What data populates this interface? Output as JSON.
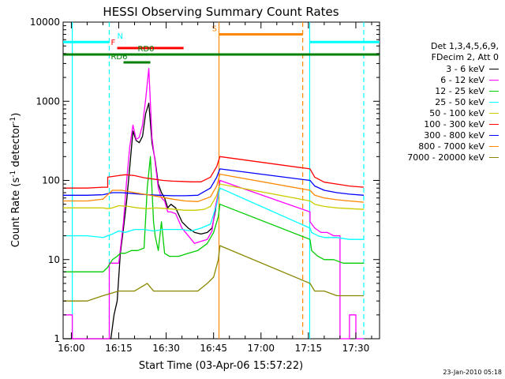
{
  "chart_data": {
    "type": "line",
    "title": "HESSI Observing Summary Count Rates",
    "xlabel": "Start Time (03-Apr-06 15:57:22)",
    "ylabel": "Count Rate (s⁻¹ detector⁻¹)",
    "ylabel_parts": {
      "pre": "Count Rate (s",
      "sup1": "-1",
      "mid": " detector",
      "sup2": "-1",
      "post": ")"
    },
    "xlim_min": [
      -2.6,
      97.5
    ],
    "ylim": [
      1,
      10000
    ],
    "yscale": "log",
    "x_ticks": [
      {
        "m": 0,
        "label": "16:00"
      },
      {
        "m": 15,
        "label": "16:15"
      },
      {
        "m": 30,
        "label": "16:30"
      },
      {
        "m": 45,
        "label": "16:45"
      },
      {
        "m": 60,
        "label": "17:00"
      },
      {
        "m": 75,
        "label": "17:15"
      },
      {
        "m": 90,
        "label": "17:30"
      }
    ],
    "y_ticks": [
      {
        "v": 1,
        "label": "1"
      },
      {
        "v": 10,
        "label": "10"
      },
      {
        "v": 100,
        "label": "100"
      },
      {
        "v": 1000,
        "label": "1000"
      },
      {
        "v": 10000,
        "label": "10000"
      }
    ],
    "legend_header": [
      "Det 1,3,4,5,6,9,",
      "FDecim 2, Att 0"
    ],
    "series": [
      {
        "name": "3 - 6 keV",
        "color": "#000000",
        "x": [
          -2.6,
          11.5,
          12.5,
          13.5,
          14.5,
          15.5,
          16.5,
          17.5,
          18.5,
          19.5,
          20.5,
          21.5,
          22.5,
          23.5,
          24.5,
          25.5,
          26.5,
          27.5,
          28.5,
          29.5,
          30.5,
          31.5,
          33,
          35,
          37,
          39,
          41,
          43,
          44.5,
          45.5,
          46.5,
          47
        ],
        "y": [
          1,
          1,
          1,
          2,
          3,
          12,
          25,
          55,
          150,
          420,
          320,
          300,
          360,
          700,
          950,
          300,
          180,
          90,
          70,
          60,
          45,
          50,
          45,
          30,
          25,
          22,
          21,
          22,
          25,
          40,
          70,
          100
        ]
      },
      {
        "name": "6 - 12 keV",
        "color": "#ff00ff",
        "x": [
          -2.6,
          0.3,
          0.3,
          12,
          12,
          14,
          15,
          16.5,
          17.5,
          18.5,
          19.5,
          20.5,
          21.5,
          22.5,
          23.5,
          24.5,
          25.5,
          26.5,
          27.5,
          28.5,
          29.5,
          30.5,
          31.5,
          33,
          35,
          37,
          39,
          41,
          43,
          44.5,
          45.5,
          46.5,
          47,
          75.5,
          75.5,
          77,
          79,
          81,
          83,
          85,
          85,
          88,
          88,
          90,
          90,
          92.5
        ],
        "y": [
          2,
          2,
          1,
          1,
          9,
          9,
          9,
          30,
          100,
          270,
          500,
          330,
          350,
          500,
          1050,
          2600,
          350,
          170,
          80,
          60,
          55,
          40,
          40,
          38,
          25,
          20,
          16,
          17,
          18,
          23,
          45,
          70,
          100,
          40,
          30,
          25,
          22,
          22,
          20,
          20,
          1,
          1,
          2,
          2,
          1,
          1
        ]
      },
      {
        "name": "12 - 25 keV",
        "color": "#00cc00",
        "x": [
          -2.6,
          5,
          10,
          11.5,
          13,
          14.5,
          15.5,
          17,
          19,
          21,
          23,
          24,
          25,
          26,
          26.5,
          27.5,
          28.5,
          29.5,
          31,
          34,
          37,
          40,
          43,
          45,
          46.5,
          47,
          75.5,
          76,
          78,
          80,
          83,
          86,
          89,
          92.5
        ],
        "y": [
          7,
          7,
          7,
          8,
          10,
          11,
          12,
          12,
          13,
          13,
          14,
          80,
          200,
          30,
          20,
          13,
          30,
          12,
          11,
          11,
          12,
          13,
          16,
          22,
          35,
          50,
          18,
          13,
          11,
          10,
          10,
          9,
          9,
          9
        ]
      },
      {
        "name": "25 - 50 keV",
        "color": "#00ffff",
        "x": [
          -2.6,
          5,
          10,
          11.5,
          13,
          15,
          17,
          20,
          23,
          26,
          29,
          32,
          35,
          38,
          41,
          44,
          46,
          47,
          75.5,
          76,
          78,
          80,
          84,
          88,
          92.5
        ],
        "y": [
          20,
          20,
          19,
          20,
          21,
          23,
          22,
          24,
          24,
          23,
          24,
          24,
          24,
          23,
          25,
          28,
          50,
          80,
          25,
          22,
          20,
          19,
          19,
          18,
          18
        ]
      },
      {
        "name": "50 - 100 keV",
        "color": "#cccc00",
        "x": [
          -2.6,
          5,
          10,
          11.5,
          13,
          15,
          18,
          21,
          24,
          27,
          30,
          33,
          36,
          39,
          42,
          44,
          46,
          47,
          75.5,
          77,
          80,
          84,
          88,
          92.5
        ],
        "y": [
          45,
          45,
          45,
          44,
          45,
          48,
          47,
          45,
          44,
          45,
          44,
          43,
          42,
          42,
          43,
          47,
          65,
          90,
          55,
          50,
          47,
          45,
          44,
          43
        ]
      },
      {
        "name": "100 - 300 keV",
        "color": "#ff0000",
        "x": [
          -2.6,
          5,
          10,
          11.5,
          11.5,
          15,
          17,
          20,
          23,
          26,
          29,
          32,
          35,
          38,
          41,
          44,
          46,
          47,
          75.5,
          77,
          80,
          84,
          88,
          92.5
        ],
        "y": [
          80,
          80,
          82,
          82,
          110,
          115,
          118,
          115,
          108,
          104,
          100,
          98,
          97,
          96,
          96,
          110,
          150,
          200,
          140,
          110,
          95,
          90,
          85,
          82
        ]
      },
      {
        "name": "300 - 800 keV",
        "color": "#0000ff",
        "x": [
          -2.6,
          5,
          10,
          13,
          16,
          20,
          24,
          28,
          32,
          36,
          40,
          44,
          46,
          47,
          75.5,
          77,
          80,
          84,
          88,
          92.5
        ],
        "y": [
          65,
          65,
          66,
          70,
          70,
          68,
          66,
          65,
          64,
          64,
          65,
          80,
          110,
          140,
          100,
          85,
          75,
          70,
          67,
          65
        ]
      },
      {
        "name": "800 - 7000 keV",
        "color": "#ff8800",
        "x": [
          -2.6,
          5,
          10,
          13,
          16,
          20,
          24,
          28,
          32,
          36,
          40,
          44,
          46,
          47,
          75.5,
          77,
          80,
          84,
          88,
          92.5
        ],
        "y": [
          55,
          55,
          58,
          75,
          75,
          70,
          66,
          62,
          58,
          55,
          54,
          62,
          85,
          120,
          75,
          65,
          60,
          57,
          55,
          53
        ]
      },
      {
        "name": "7000 - 20000 keV",
        "color": "#888800",
        "x": [
          -2.6,
          5,
          10,
          15,
          20,
          24,
          26,
          30,
          35,
          40,
          43,
          45,
          46.5,
          47,
          75.5,
          77,
          80,
          84,
          88,
          92.5
        ],
        "y": [
          3,
          3,
          3.5,
          4,
          4,
          5,
          4,
          4,
          4,
          4,
          5,
          6,
          10,
          15,
          5,
          4,
          4,
          3.5,
          3.5,
          3.5
        ]
      }
    ],
    "vlines": [
      {
        "x": 0.3,
        "color": "#00ffff",
        "dashed": false
      },
      {
        "x": 12,
        "color": "#00ffff",
        "dashed": true
      },
      {
        "x": 46.7,
        "color": "#ff8800",
        "dashed": false
      },
      {
        "x": 73.2,
        "color": "#ff8800",
        "dashed": true
      },
      {
        "x": 75.4,
        "color": "#00ffff",
        "dashed": false
      },
      {
        "x": 92.5,
        "color": "#00ffff",
        "dashed": true
      }
    ],
    "flags": [
      {
        "label": "N",
        "color": "#00ffff",
        "segments": [
          [
            -2.6,
            12
          ],
          [
            75.4,
            97.5
          ]
        ],
        "y": 5600,
        "label_x": 14.5
      },
      {
        "label": "F",
        "color": "#ff0000",
        "segments": [
          [
            14.5,
            35.5
          ]
        ],
        "y": 4700,
        "label_x": 12.5
      },
      {
        "label": "S",
        "color": "#ff8800",
        "segments": [
          [
            46.7,
            73.2
          ]
        ],
        "y": 7000,
        "label_x": 44.5
      },
      {
        "label": "",
        "color": "#008000",
        "segments": [
          [
            -2.6,
            97.5
          ]
        ],
        "y": 3900,
        "label_x": null
      },
      {
        "label": "RD0",
        "color": "#008000",
        "segments": [
          [
            17.6,
            28.5
          ]
        ],
        "y": 3900,
        "label_x": 21
      },
      {
        "label": "RD6",
        "color": "#008000",
        "segments": [
          [
            16.5,
            25
          ]
        ],
        "y": 3100,
        "label_x": 12.5
      }
    ],
    "footer_date": "23-Jan-2010 05:18",
    "grid": false,
    "legend_position": "right"
  }
}
